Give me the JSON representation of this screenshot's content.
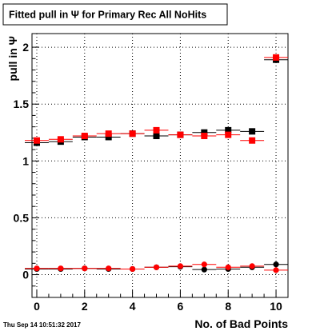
{
  "chart_data": {
    "type": "scatter",
    "title": "Fitted pull in Ψ  for Primary Rec All NoHits",
    "xlabel": "No. of Bad Points",
    "ylabel": "pull in  Ψ",
    "xlim": [
      -0.2,
      10.5
    ],
    "ylim": [
      -0.2,
      2.12
    ],
    "xticks": [
      0,
      2,
      4,
      6,
      8,
      10
    ],
    "yticks": [
      0,
      0.5,
      1,
      1.5,
      2
    ],
    "ytick_labels": [
      "0",
      "0.5",
      "1",
      "1.5",
      "2"
    ],
    "grid": true,
    "x": [
      0,
      1,
      2,
      3,
      4,
      5,
      6,
      7,
      8,
      9,
      10
    ],
    "series": [
      {
        "marker": "square",
        "color": "#000000",
        "values": [
          1.16,
          1.17,
          1.21,
          1.21,
          1.24,
          1.22,
          1.23,
          1.25,
          1.27,
          1.26,
          1.89
        ]
      },
      {
        "marker": "square",
        "color": "#ff0000",
        "values": [
          1.18,
          1.19,
          1.22,
          1.24,
          1.24,
          1.27,
          1.23,
          1.22,
          1.23,
          1.18,
          1.91
        ]
      },
      {
        "marker": "circle",
        "color": "#000000",
        "values": [
          0.05,
          0.05,
          0.055,
          0.05,
          0.05,
          0.065,
          0.07,
          0.045,
          0.05,
          0.065,
          0.09
        ]
      },
      {
        "marker": "circle",
        "color": "#ff0000",
        "values": [
          0.055,
          0.055,
          0.055,
          0.055,
          0.05,
          0.065,
          0.075,
          0.09,
          0.065,
          0.075,
          0.04
        ]
      }
    ]
  },
  "footer": {
    "timestamp": "Thu Sep 14 10:51:32 2017"
  }
}
